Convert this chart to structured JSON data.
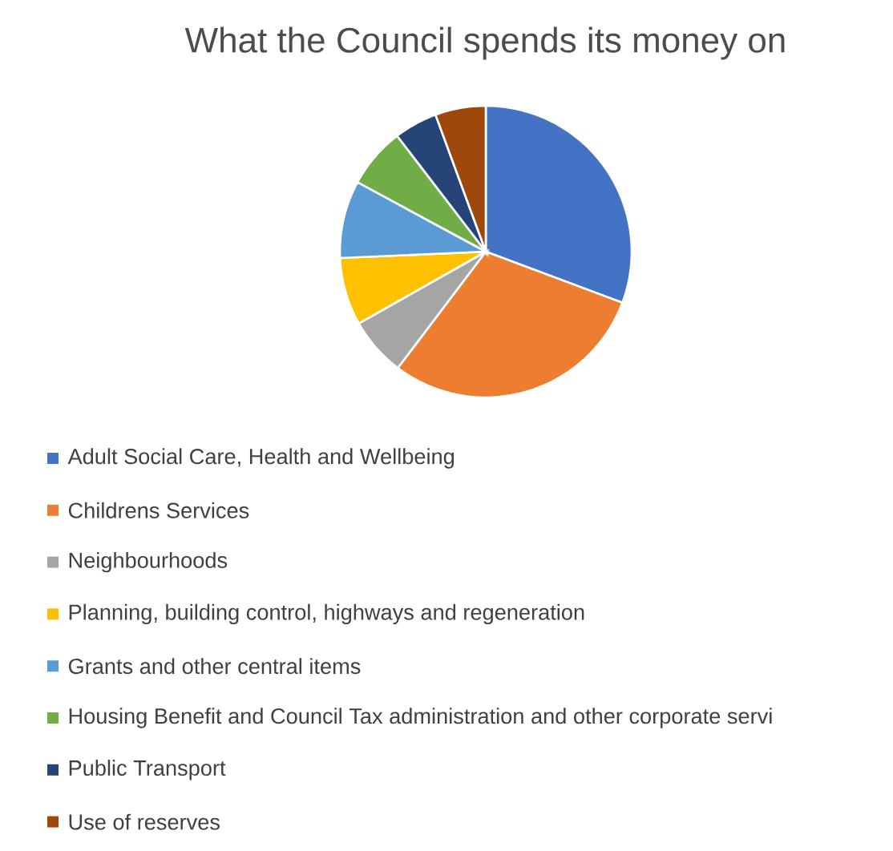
{
  "chart_data": {
    "type": "pie",
    "title": "What the Council spends its money on",
    "categories": [
      "Adult Social Care, Health and Wellbeing",
      "Childrens Services",
      "Neighbourhoods",
      "Planning, building control, highways and regeneration",
      "Grants and other central items",
      "Housing Benefit and Council Tax administration and other corporate servi",
      "Public Transport",
      "Use of reserves"
    ],
    "values": [
      30.7,
      29.6,
      6.5,
      7.5,
      8.6,
      6.7,
      4.8,
      5.6
    ],
    "colors": [
      "#4472c4",
      "#ed7d31",
      "#a5a5a5",
      "#ffc000",
      "#5b9bd5",
      "#70ad47",
      "#264478",
      "#9e480e"
    ],
    "legend": "bottom"
  }
}
